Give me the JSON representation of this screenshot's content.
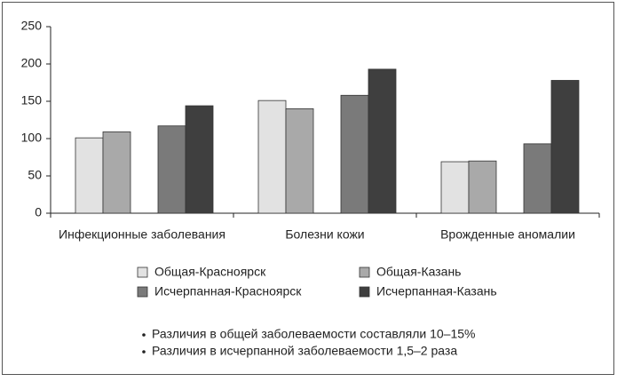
{
  "chart_data": {
    "type": "bar",
    "categories": [
      "Инфекционные заболевания",
      "Болезни кожи",
      "Врожденные аномалии"
    ],
    "series": [
      {
        "name": "Общая-Красноярск",
        "color": "#e2e2e2",
        "values": [
          101,
          151,
          69
        ]
      },
      {
        "name": "Общая-Казань",
        "color": "#a9a9a9",
        "values": [
          109,
          140,
          70
        ]
      },
      {
        "name": "Исчерпанная-Красноярск",
        "color": "#7a7a7a",
        "values": [
          117,
          158,
          93
        ]
      },
      {
        "name": "Исчерпанная-Казань",
        "color": "#3f3f3f",
        "values": [
          144,
          193,
          178
        ]
      }
    ],
    "ylim": [
      0,
      250
    ],
    "yticks": [
      0,
      50,
      100,
      150,
      200,
      250
    ],
    "grid": false,
    "notes": [
      "Различия в общей заболеваемости составляли 10–15%",
      "Различия в исчерпанной заболеваемости 1,5–2 раза"
    ]
  }
}
